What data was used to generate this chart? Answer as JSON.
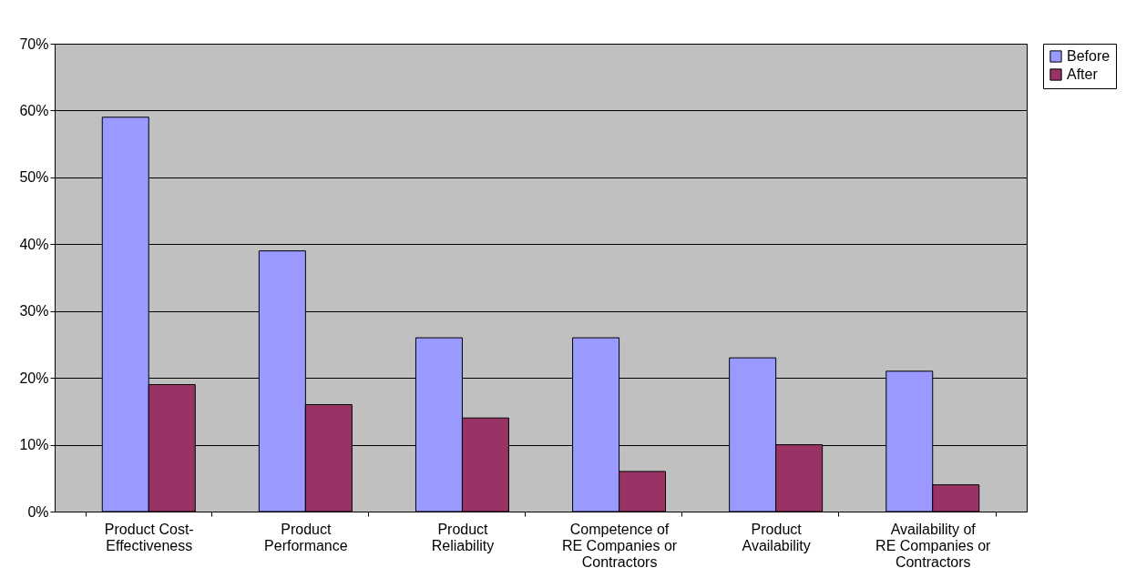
{
  "chart_data": {
    "type": "bar",
    "categories": [
      "Product Cost-Effectiveness",
      "Product Performance",
      "Product Reliability",
      "Competence of RE Companies or Contractors",
      "Product Availability",
      "Availability of RE Companies or Contractors"
    ],
    "series": [
      {
        "name": "Before",
        "color": "#9999ff",
        "values": [
          59,
          39,
          26,
          26,
          23,
          21
        ]
      },
      {
        "name": "After",
        "color": "#993366",
        "values": [
          19,
          16,
          14,
          6,
          10,
          4
        ]
      }
    ],
    "ylim": [
      0,
      70
    ],
    "yticks": [
      {
        "value": 0,
        "label": "0%"
      },
      {
        "value": 10,
        "label": "10%"
      },
      {
        "value": 20,
        "label": "20%"
      },
      {
        "value": 30,
        "label": "30%"
      },
      {
        "value": 40,
        "label": "40%"
      },
      {
        "value": 50,
        "label": "50%"
      },
      {
        "value": 60,
        "label": "60%"
      },
      {
        "value": 70,
        "label": "70%"
      }
    ],
    "grid": "y",
    "legend": "right"
  }
}
